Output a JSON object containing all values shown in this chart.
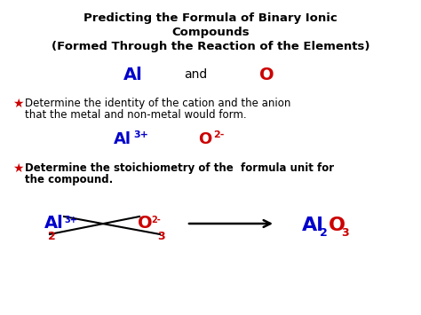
{
  "bg_color": "#ffffff",
  "title_line1": "Predicting the Formula of Binary Ionic",
  "title_line2": "Compounds",
  "title_line3": "(Formed Through the Reaction of the Elements)",
  "title_color": "#000000",
  "title_fontsize": 9.5,
  "Al_label": "Al",
  "O_label": "O",
  "and_label": "and",
  "element_color_Al": "#0000cc",
  "element_color_O": "#cc0000",
  "element_color_and": "#000000",
  "element_fontsize": 14,
  "bullet_star": "★",
  "bullet_color": "#cc0000",
  "bullet1_text": "Determine the identity of the cation and the anion",
  "bullet1_text2": "that the metal and non-metal would form.",
  "bullet_fontsize": 8.5,
  "ion1_base": "Al",
  "ion1_super": "3+",
  "ion2_base": "O",
  "ion2_super": "2-",
  "ion_fontsize": 13,
  "bullet2_text": "Determine the stoichiometry of the  formula unit for",
  "bullet2_text2": "the compound.",
  "bullet2_fontsize": 8.5,
  "cross_Al_base": "Al",
  "cross_Al_super": "3+",
  "cross_Al_sub": "2",
  "cross_O_base": "O",
  "cross_O_super": "2-",
  "cross_O_sub": "3",
  "result_base1": "Al",
  "result_sub2": "2",
  "result_base2": "O",
  "result_sub3": "3"
}
